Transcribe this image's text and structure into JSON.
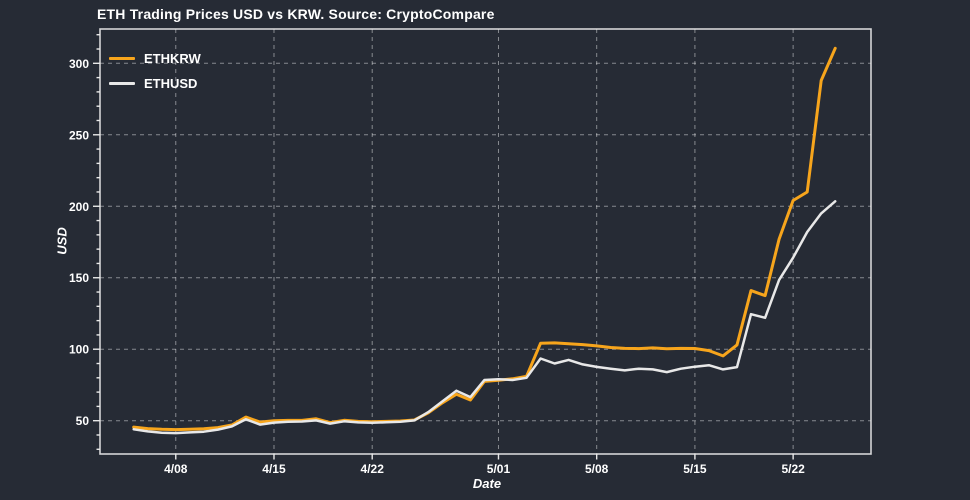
{
  "chart_data": {
    "type": "line",
    "title": "ETH Trading Prices USD vs KRW. Source: CryptoCompare",
    "xlabel": "Date",
    "ylabel": "USD",
    "legend_position": "top-left",
    "grid": "dashed",
    "x": [
      "4/05",
      "4/06",
      "4/07",
      "4/08",
      "4/09",
      "4/10",
      "4/11",
      "4/12",
      "4/13",
      "4/14",
      "4/15",
      "4/16",
      "4/17",
      "4/18",
      "4/19",
      "4/20",
      "4/21",
      "4/22",
      "4/23",
      "4/24",
      "4/25",
      "4/26",
      "4/27",
      "4/28",
      "4/29",
      "4/30",
      "5/01",
      "5/02",
      "5/03",
      "5/04",
      "5/05",
      "5/06",
      "5/07",
      "5/08",
      "5/09",
      "5/10",
      "5/11",
      "5/12",
      "5/13",
      "5/14",
      "5/15",
      "5/16",
      "5/17",
      "5/18",
      "5/19",
      "5/20",
      "5/21",
      "5/22",
      "5/23",
      "5/24",
      "5/25"
    ],
    "series": [
      {
        "name": "ETHKRW",
        "color": "#F7A51C",
        "width": 3,
        "values": [
          45.5,
          44.5,
          44.0,
          43.8,
          44.0,
          44.3,
          45.2,
          47.0,
          52.5,
          49.0,
          50.0,
          50.2,
          50.2,
          51.3,
          48.7,
          50.3,
          49.5,
          49.3,
          49.5,
          49.8,
          50.5,
          55.5,
          62.5,
          68.5,
          64.5,
          77.5,
          78.3,
          79.3,
          81.0,
          104.2,
          104.4,
          103.8,
          103.2,
          102.3,
          101.2,
          100.6,
          100.4,
          100.9,
          100.3,
          100.6,
          100.5,
          99.0,
          95.3,
          103.0,
          141.0,
          137.5,
          177.0,
          204.0,
          210.0,
          288.0,
          310.5
        ]
      },
      {
        "name": "ETHUSD",
        "color": "#E8E8E8",
        "width": 2.5,
        "values": [
          44.0,
          42.5,
          41.6,
          41.3,
          41.8,
          42.3,
          43.8,
          46.0,
          51.0,
          47.3,
          48.7,
          49.2,
          49.4,
          50.2,
          48.0,
          49.6,
          48.8,
          48.6,
          48.9,
          49.2,
          50.2,
          56.0,
          63.5,
          71.0,
          66.5,
          78.5,
          79.0,
          78.5,
          80.0,
          93.5,
          90.0,
          92.5,
          89.4,
          87.6,
          86.4,
          85.2,
          86.4,
          85.9,
          84.0,
          86.4,
          87.8,
          88.8,
          85.9,
          87.5,
          124.5,
          122.0,
          148.5,
          164.0,
          182.0,
          195.0,
          203.5
        ]
      }
    ],
    "x_ticks": [
      {
        "label": "4/08",
        "day": 3
      },
      {
        "label": "4/15",
        "day": 10
      },
      {
        "label": "4/22",
        "day": 17
      },
      {
        "label": "5/01",
        "day": 26
      },
      {
        "label": "5/08",
        "day": 33
      },
      {
        "label": "5/15",
        "day": 40
      },
      {
        "label": "5/22",
        "day": 47
      }
    ],
    "y_ticks": [
      50,
      100,
      150,
      200,
      250,
      300
    ],
    "y_minor_step": 10,
    "y_minor_range": [
      30,
      320
    ],
    "x_range_days": [
      -2.4,
      52.55
    ],
    "y_range": [
      26.7,
      324.0
    ],
    "colors": {
      "background": "#262B35",
      "grid": "#FFFFFF",
      "frame": "#E8E8E8",
      "tick": "#E8E8E8",
      "text": "#FFFFFF"
    }
  }
}
